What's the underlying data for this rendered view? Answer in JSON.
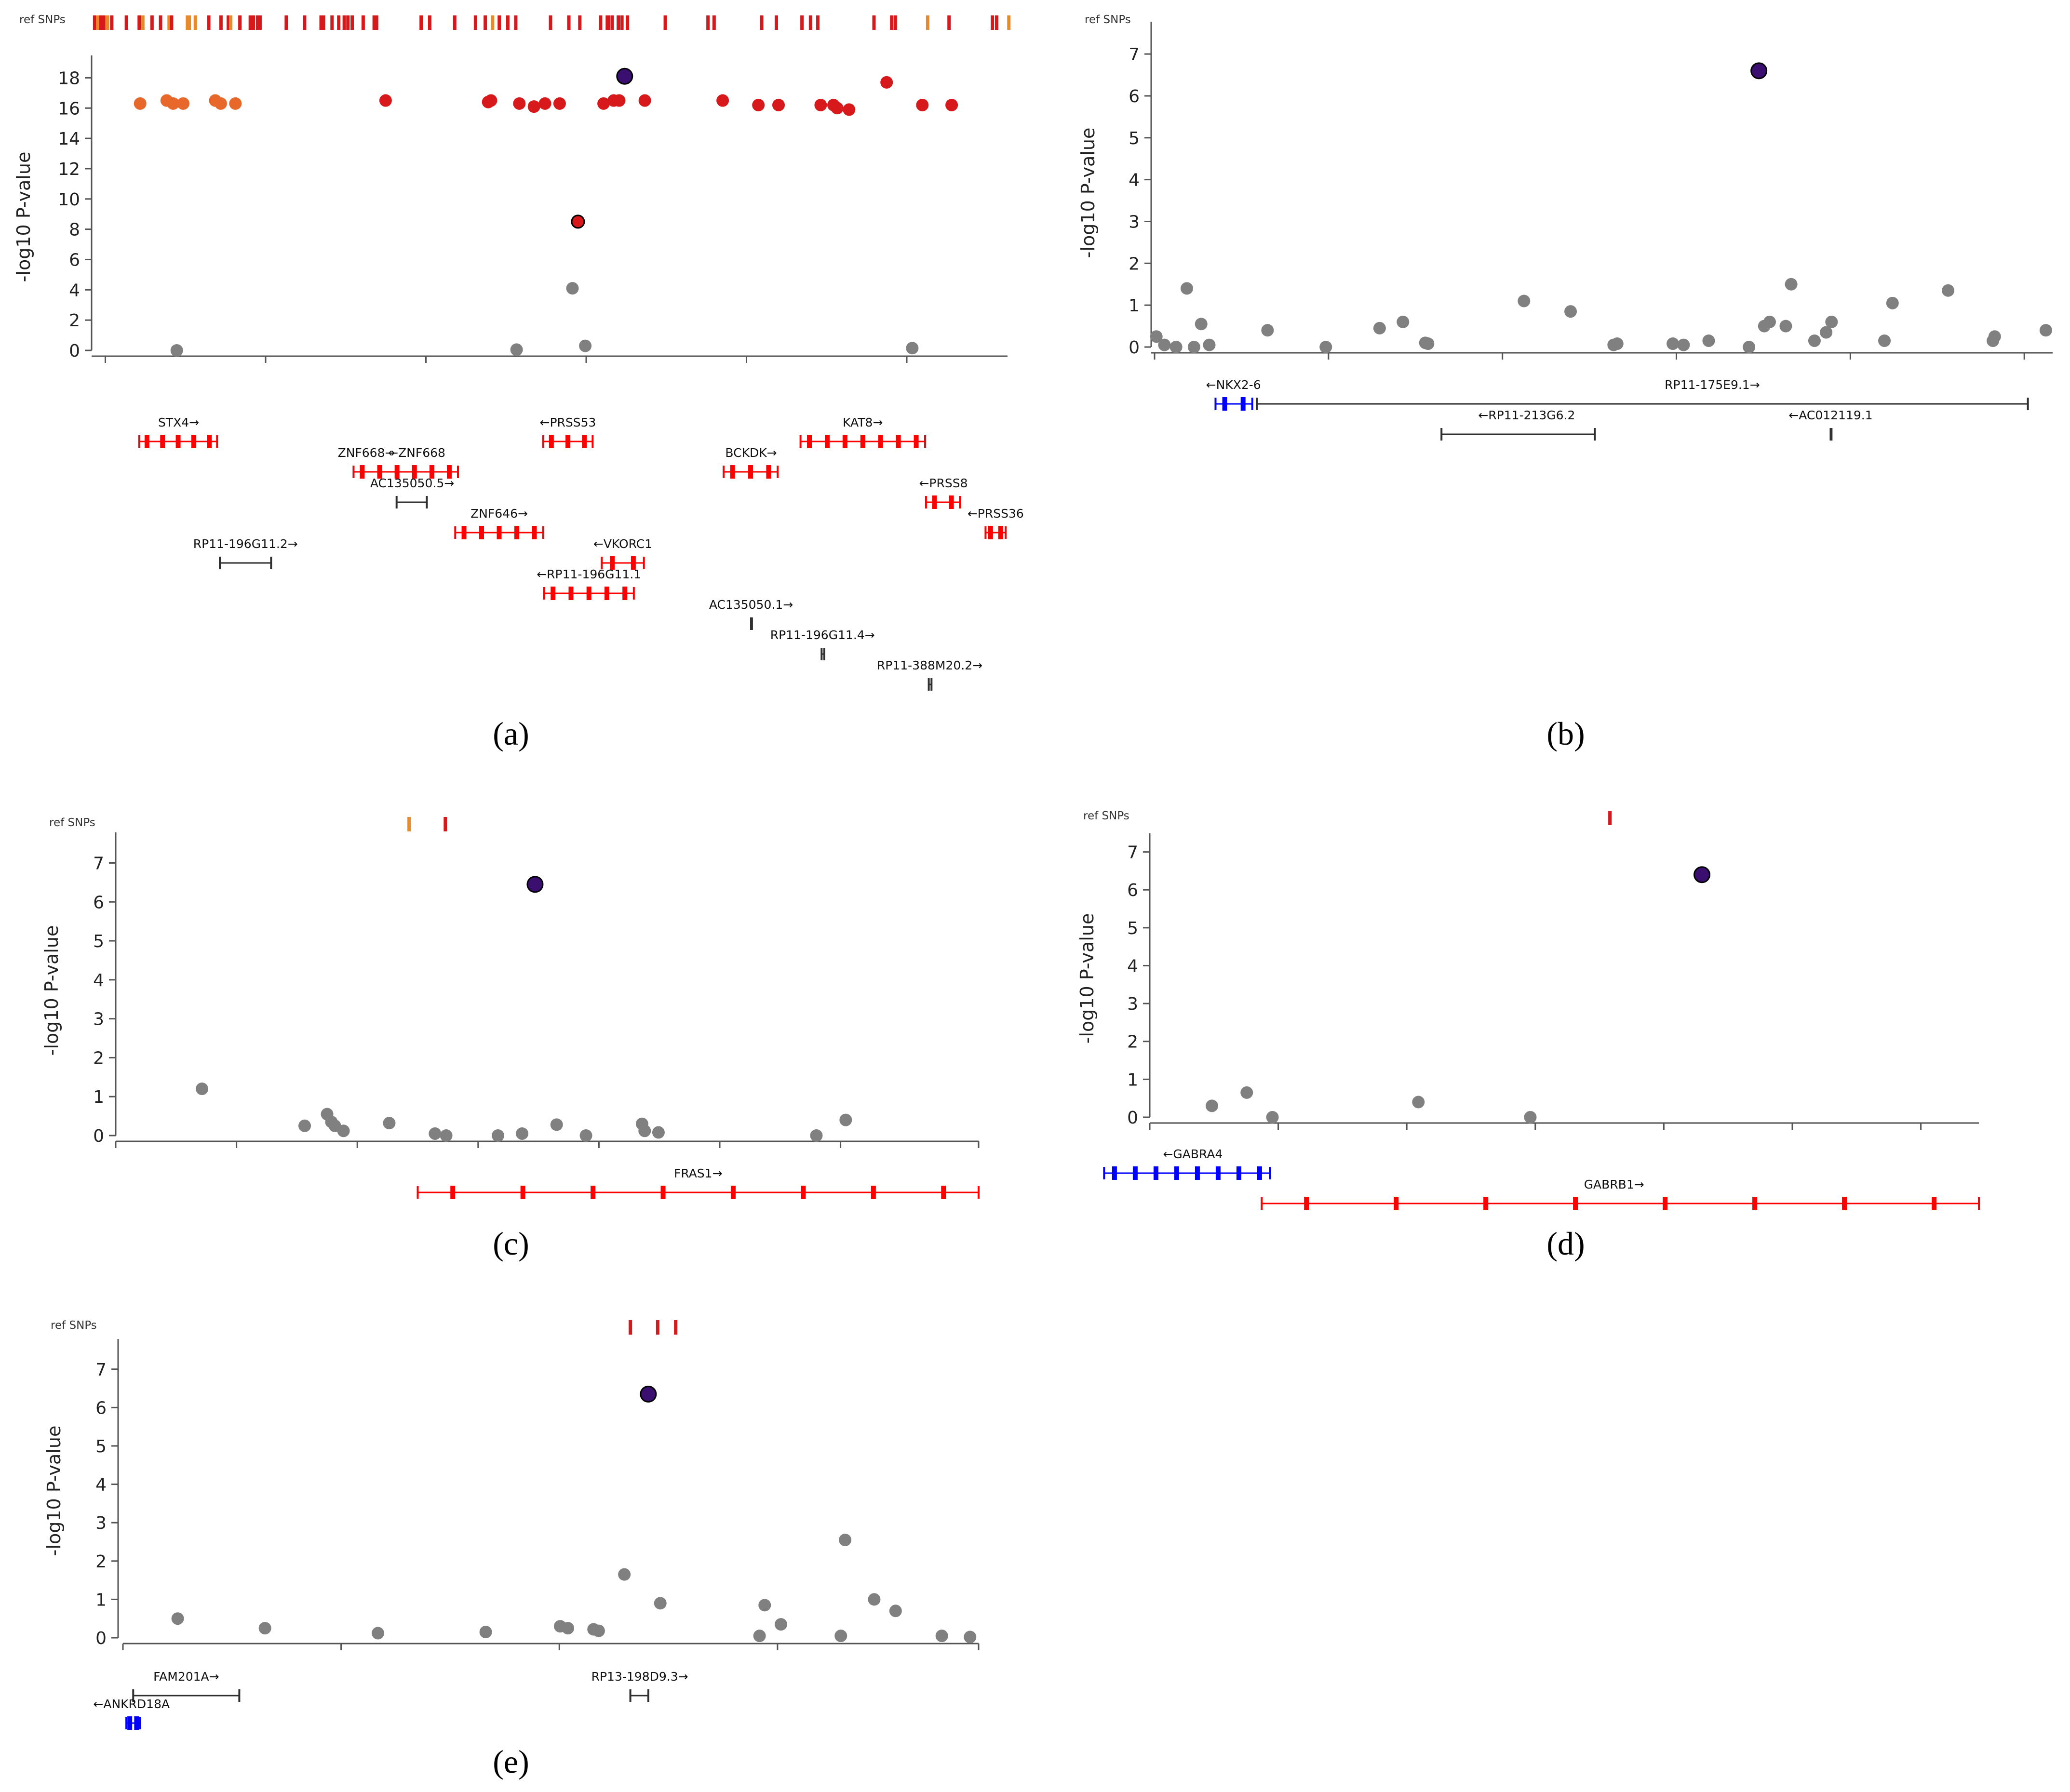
{
  "colors": {
    "axis": "#555555",
    "point_grey": "#808080",
    "lead": "#3b0f70",
    "snp_red": "#d7191c",
    "snp_orange": "#e8672a",
    "snp_amber": "#e88a2a",
    "gene_red": "#ff0000",
    "gene_blue": "#0000ff",
    "gene_black": "#303030"
  },
  "chart_data": [
    {
      "id": "a",
      "type": "scatter",
      "panel_label": "(a)",
      "snp_track_label": "ref SNPs",
      "ylabel": "-log10 P-value",
      "ylim": [
        0,
        19
      ],
      "yticks": [
        0,
        2,
        4,
        6,
        8,
        10,
        12,
        14,
        16,
        18
      ],
      "xlim": [
        0,
        1000
      ],
      "xticks": [
        15,
        190,
        365,
        540,
        715,
        890
      ],
      "snp_ticks": [
        {
          "x": 5,
          "c": "r"
        },
        {
          "x": 10,
          "c": "o"
        },
        {
          "x": 15,
          "c": "r"
        },
        {
          "x": 20,
          "c": "r"
        },
        {
          "x": 26,
          "c": "o"
        },
        {
          "x": 33,
          "c": "r"
        },
        {
          "x": 57,
          "c": "r"
        },
        {
          "x": 78,
          "c": "r"
        },
        {
          "x": 84,
          "c": "o"
        },
        {
          "x": 99,
          "c": "r"
        },
        {
          "x": 113,
          "c": "r"
        },
        {
          "x": 127,
          "c": "o"
        },
        {
          "x": 131,
          "c": "r"
        },
        {
          "x": 157,
          "c": "o"
        },
        {
          "x": 160,
          "c": "o"
        },
        {
          "x": 170,
          "c": "o"
        },
        {
          "x": 192,
          "c": "r"
        },
        {
          "x": 212,
          "c": "r"
        },
        {
          "x": 224,
          "c": "r"
        },
        {
          "x": 228,
          "c": "o"
        },
        {
          "x": 243,
          "c": "r"
        },
        {
          "x": 260,
          "c": "r"
        },
        {
          "x": 265,
          "c": "r"
        },
        {
          "x": 272,
          "c": "r"
        },
        {
          "x": 276,
          "c": "r"
        },
        {
          "x": 319,
          "c": "r"
        },
        {
          "x": 349,
          "c": "r"
        },
        {
          "x": 376,
          "c": "r"
        },
        {
          "x": 380,
          "c": "r"
        },
        {
          "x": 394,
          "c": "r"
        },
        {
          "x": 405,
          "c": "r"
        },
        {
          "x": 414,
          "c": "r"
        },
        {
          "x": 420,
          "c": "r"
        },
        {
          "x": 427,
          "c": "r"
        },
        {
          "x": 445,
          "c": "r"
        },
        {
          "x": 463,
          "c": "r"
        },
        {
          "x": 467,
          "c": "r"
        },
        {
          "x": 540,
          "c": "r"
        },
        {
          "x": 554,
          "c": "r"
        },
        {
          "x": 595,
          "c": "r"
        },
        {
          "x": 629,
          "c": "r"
        },
        {
          "x": 645,
          "c": "r"
        },
        {
          "x": 657,
          "c": "o"
        },
        {
          "x": 668,
          "c": "r"
        },
        {
          "x": 682,
          "c": "r"
        },
        {
          "x": 695,
          "c": "r"
        },
        {
          "x": 752,
          "c": "r"
        },
        {
          "x": 782,
          "c": "r"
        },
        {
          "x": 800,
          "c": "r"
        },
        {
          "x": 834,
          "c": "r"
        },
        {
          "x": 845,
          "c": "r"
        },
        {
          "x": 847,
          "c": "r"
        },
        {
          "x": 853,
          "c": "r"
        },
        {
          "x": 863,
          "c": "r"
        },
        {
          "x": 869,
          "c": "r"
        },
        {
          "x": 878,
          "c": "r"
        },
        {
          "x": 940,
          "c": "r"
        },
        {
          "x": 1010,
          "c": "r"
        },
        {
          "x": 1020,
          "c": "r"
        },
        {
          "x": 1098,
          "c": "r"
        },
        {
          "x": 1122,
          "c": "r"
        },
        {
          "x": 1164,
          "c": "r"
        },
        {
          "x": 1178,
          "c": "r"
        },
        {
          "x": 1190,
          "c": "r"
        },
        {
          "x": 1282,
          "c": "r"
        },
        {
          "x": 1311,
          "c": "r"
        },
        {
          "x": 1317,
          "c": "r"
        },
        {
          "x": 1370,
          "c": "o"
        },
        {
          "x": 1405,
          "c": "r"
        },
        {
          "x": 1476,
          "c": "r"
        },
        {
          "x": 1483,
          "c": "r"
        },
        {
          "x": 1503,
          "c": "o"
        }
      ],
      "lead": {
        "x": 582,
        "y": 18.1
      },
      "points": [
        {
          "x": 53,
          "y": 16.3,
          "c": "o"
        },
        {
          "x": 82,
          "y": 16.5,
          "c": "o"
        },
        {
          "x": 89,
          "y": 16.3,
          "c": "o"
        },
        {
          "x": 100,
          "y": 16.3,
          "c": "o"
        },
        {
          "x": 135,
          "y": 16.5,
          "c": "o"
        },
        {
          "x": 141,
          "y": 16.3,
          "c": "o"
        },
        {
          "x": 157,
          "y": 16.3,
          "c": "o"
        },
        {
          "x": 321,
          "y": 16.5,
          "c": "r"
        },
        {
          "x": 433,
          "y": 16.4,
          "c": "r"
        },
        {
          "x": 436,
          "y": 16.5,
          "c": "r"
        },
        {
          "x": 467,
          "y": 16.3,
          "c": "r"
        },
        {
          "x": 483,
          "y": 16.1,
          "c": "r"
        },
        {
          "x": 495,
          "y": 16.3,
          "c": "r"
        },
        {
          "x": 511,
          "y": 16.3,
          "c": "r"
        },
        {
          "x": 559,
          "y": 16.3,
          "c": "r"
        },
        {
          "x": 570,
          "y": 16.5,
          "c": "r"
        },
        {
          "x": 576,
          "y": 16.5,
          "c": "r"
        },
        {
          "x": 604,
          "y": 16.5,
          "c": "r"
        },
        {
          "x": 689,
          "y": 16.5,
          "c": "r"
        },
        {
          "x": 728,
          "y": 16.2,
          "c": "r"
        },
        {
          "x": 750,
          "y": 16.2,
          "c": "r"
        },
        {
          "x": 796,
          "y": 16.2,
          "c": "r"
        },
        {
          "x": 810,
          "y": 16.2,
          "c": "r"
        },
        {
          "x": 814,
          "y": 16.0,
          "c": "r"
        },
        {
          "x": 827,
          "y": 15.9,
          "c": "r"
        },
        {
          "x": 868,
          "y": 17.7,
          "c": "r"
        },
        {
          "x": 907,
          "y": 16.2,
          "c": "r"
        },
        {
          "x": 939,
          "y": 16.2,
          "c": "r"
        },
        {
          "x": 531,
          "y": 8.5,
          "c": "r"
        },
        {
          "x": 525,
          "y": 4.1,
          "c": "g"
        },
        {
          "x": 93,
          "y": 0.0,
          "c": "g"
        },
        {
          "x": 464,
          "y": 0.05,
          "c": "g"
        },
        {
          "x": 539,
          "y": 0.3,
          "c": "g"
        },
        {
          "x": 896,
          "y": 0.15,
          "c": "g"
        }
      ],
      "genes": [
        {
          "name": "STX4→",
          "x0": 52,
          "x1": 137,
          "row": 0,
          "color": "red",
          "lx": 95
        },
        {
          "name": "←PRSS53",
          "x0": 493,
          "x1": 547,
          "row": 0,
          "color": "red",
          "lx": 520
        },
        {
          "name": "KAT8→",
          "x0": 774,
          "x1": 910,
          "row": 0,
          "color": "red",
          "lx": 842
        },
        {
          "name": "ZNF668→",
          "x0": 286,
          "x1": 400,
          "row": 1,
          "color": "red",
          "lx": 300
        },
        {
          "name": "←ZNF668",
          "x0": 286,
          "x1": 400,
          "row": 1,
          "color": "red",
          "lx": 355
        },
        {
          "name": "BCKDK→",
          "x0": 690,
          "x1": 749,
          "row": 1,
          "color": "red",
          "lx": 720
        },
        {
          "name": "AC135050.5→",
          "x0": 333,
          "x1": 366,
          "row": 2,
          "color": "black",
          "lx": 350
        },
        {
          "name": "←PRSS8",
          "x0": 911,
          "x1": 948,
          "row": 2,
          "color": "red",
          "lx": 930
        },
        {
          "name": "ZNF646→",
          "x0": 397,
          "x1": 493,
          "row": 3,
          "color": "red",
          "lx": 445
        },
        {
          "name": "←PRSS36",
          "x0": 976,
          "x1": 998,
          "row": 3,
          "color": "red",
          "lx": 987
        },
        {
          "name": "RP11-196G11.2→",
          "x0": 140,
          "x1": 196,
          "row": 4,
          "color": "black",
          "lx": 168
        },
        {
          "name": "←VKORC1",
          "x0": 557,
          "x1": 603,
          "row": 4,
          "color": "red",
          "lx": 580
        },
        {
          "name": "←RP11-196G11.1",
          "x0": 494,
          "x1": 592,
          "row": 5,
          "color": "red",
          "lx": 543
        },
        {
          "name": "AC135050.1→",
          "x0": 720,
          "x1": 721,
          "row": 6,
          "color": "black",
          "lx": 720
        },
        {
          "name": "RP11-196G11.4→",
          "x0": 797,
          "x1": 800,
          "row": 7,
          "color": "black",
          "lx": 798
        },
        {
          "name": "RP11-388M20.2→",
          "x0": 914,
          "x1": 917,
          "row": 8,
          "color": "black",
          "lx": 915
        }
      ]
    },
    {
      "id": "b",
      "type": "scatter",
      "panel_label": "(b)",
      "snp_track_label": "ref SNPs",
      "ylabel": "-log10 P-value",
      "ylim": [
        0,
        7.6
      ],
      "yticks": [
        0,
        1,
        2,
        3,
        4,
        5,
        6,
        7
      ],
      "xlim": [
        0,
        1000
      ],
      "xticks": [
        0,
        194,
        388,
        582,
        776,
        970
      ],
      "snp_ticks": [],
      "lead": {
        "x": 674,
        "y": 6.6
      },
      "points": [
        {
          "x": 2,
          "y": 0.25
        },
        {
          "x": 11,
          "y": 0.05
        },
        {
          "x": 24,
          "y": 0.0
        },
        {
          "x": 36,
          "y": 1.4
        },
        {
          "x": 44,
          "y": 0.0
        },
        {
          "x": 52,
          "y": 0.55
        },
        {
          "x": 61,
          "y": 0.05
        },
        {
          "x": 126,
          "y": 0.4
        },
        {
          "x": 191,
          "y": 0.0
        },
        {
          "x": 251,
          "y": 0.45
        },
        {
          "x": 277,
          "y": 0.6
        },
        {
          "x": 302,
          "y": 0.1
        },
        {
          "x": 305,
          "y": 0.08
        },
        {
          "x": 412,
          "y": 1.1
        },
        {
          "x": 464,
          "y": 0.85
        },
        {
          "x": 512,
          "y": 0.05
        },
        {
          "x": 516,
          "y": 0.08
        },
        {
          "x": 578,
          "y": 0.08
        },
        {
          "x": 590,
          "y": 0.05
        },
        {
          "x": 618,
          "y": 0.15
        },
        {
          "x": 663,
          "y": 0.0
        },
        {
          "x": 680,
          "y": 0.5
        },
        {
          "x": 686,
          "y": 0.6
        },
        {
          "x": 704,
          "y": 0.5
        },
        {
          "x": 710,
          "y": 1.5
        },
        {
          "x": 736,
          "y": 0.15
        },
        {
          "x": 749,
          "y": 0.35
        },
        {
          "x": 755,
          "y": 0.6
        },
        {
          "x": 814,
          "y": 0.15
        },
        {
          "x": 823,
          "y": 1.05
        },
        {
          "x": 885,
          "y": 1.35
        },
        {
          "x": 935,
          "y": 0.15
        },
        {
          "x": 937,
          "y": 0.25
        },
        {
          "x": 994,
          "y": 0.4
        }
      ],
      "genes": [
        {
          "name": "←NKX2-6",
          "x0": 68,
          "x1": 109,
          "row": 0,
          "color": "blue",
          "lx": 88
        },
        {
          "name": "RP11-175E9.1→",
          "x0": 114,
          "x1": 974,
          "row": 0,
          "color": "black",
          "lx": 622
        },
        {
          "name": "←RP11-213G6.2",
          "x0": 320,
          "x1": 491,
          "row": 1,
          "color": "black",
          "lx": 415
        },
        {
          "name": "←AC012119.1",
          "x0": 754,
          "x1": 755,
          "row": 1,
          "color": "black",
          "lx": 754
        }
      ]
    },
    {
      "id": "c",
      "type": "scatter",
      "panel_label": "(c)",
      "snp_track_label": "ref SNPs",
      "ylabel": "-log10 P-value",
      "ylim": [
        0,
        7.6
      ],
      "yticks": [
        0,
        1,
        2,
        3,
        4,
        5,
        6,
        7
      ],
      "xlim": [
        0,
        1000
      ],
      "xticks": [
        0,
        140,
        280,
        420,
        560,
        700,
        840,
        1000
      ],
      "snp_ticks": [
        {
          "x": 340,
          "c": "o"
        },
        {
          "x": 382,
          "c": "r"
        }
      ],
      "lead": {
        "x": 486,
        "y": 6.45
      },
      "points": [
        {
          "x": 100,
          "y": 1.2
        },
        {
          "x": 219,
          "y": 0.25
        },
        {
          "x": 245,
          "y": 0.55
        },
        {
          "x": 250,
          "y": 0.35
        },
        {
          "x": 254,
          "y": 0.25
        },
        {
          "x": 264,
          "y": 0.12
        },
        {
          "x": 317,
          "y": 0.32
        },
        {
          "x": 370,
          "y": 0.05
        },
        {
          "x": 383,
          "y": 0.0
        },
        {
          "x": 443,
          "y": 0.0
        },
        {
          "x": 471,
          "y": 0.05
        },
        {
          "x": 511,
          "y": 0.28
        },
        {
          "x": 545,
          "y": 0.0
        },
        {
          "x": 610,
          "y": 0.3
        },
        {
          "x": 613,
          "y": 0.12
        },
        {
          "x": 629,
          "y": 0.08
        },
        {
          "x": 812,
          "y": 0.0
        },
        {
          "x": 846,
          "y": 0.4
        }
      ],
      "genes": [
        {
          "name": "FRAS1→",
          "x0": 350,
          "x1": 1000,
          "row": 0,
          "color": "red",
          "lx": 675
        }
      ]
    },
    {
      "id": "d",
      "type": "scatter",
      "panel_label": "(d)",
      "snp_track_label": "ref SNPs",
      "ylabel": "-log10 P-value",
      "ylim": [
        0,
        7.3
      ],
      "yticks": [
        0,
        1,
        2,
        3,
        4,
        5,
        6,
        7
      ],
      "xlim": [
        0,
        1000
      ],
      "xticks": [
        0,
        155,
        310,
        465,
        620,
        775,
        930
      ],
      "snp_ticks": [
        {
          "x": 555,
          "c": "r"
        }
      ],
      "lead": {
        "x": 666,
        "y": 6.4
      },
      "points": [
        {
          "x": 75,
          "y": 0.3
        },
        {
          "x": 117,
          "y": 0.65
        },
        {
          "x": 148,
          "y": 0.0
        },
        {
          "x": 324,
          "y": 0.4
        },
        {
          "x": 459,
          "y": 0.0
        }
      ],
      "genes": [
        {
          "name": "←GABRA4",
          "x0": -55,
          "x1": 145,
          "row": 0,
          "color": "blue",
          "lx": 52
        },
        {
          "name": "GABRB1→",
          "x0": 135,
          "x1": 1000,
          "row": 1,
          "color": "red",
          "lx": 560
        }
      ]
    },
    {
      "id": "e",
      "type": "scatter",
      "panel_label": "(e)",
      "snp_track_label": "ref SNPs",
      "ylabel": "-log10 P-value",
      "ylim": [
        0,
        7.6
      ],
      "yticks": [
        0,
        1,
        2,
        3,
        4,
        5,
        6,
        7
      ],
      "xlim": [
        0,
        1000
      ],
      "xticks": [
        0,
        255,
        510,
        765,
        1000
      ],
      "snp_ticks": [
        {
          "x": 593,
          "c": "r"
        },
        {
          "x": 625,
          "c": "r"
        },
        {
          "x": 646,
          "c": "r"
        }
      ],
      "lead": {
        "x": 614,
        "y": 6.35
      },
      "points": [
        {
          "x": 64,
          "y": 0.5
        },
        {
          "x": 166,
          "y": 0.25
        },
        {
          "x": 298,
          "y": 0.12
        },
        {
          "x": 424,
          "y": 0.15
        },
        {
          "x": 511,
          "y": 0.3
        },
        {
          "x": 520,
          "y": 0.25
        },
        {
          "x": 550,
          "y": 0.22
        },
        {
          "x": 556,
          "y": 0.18
        },
        {
          "x": 586,
          "y": 1.65
        },
        {
          "x": 628,
          "y": 0.9
        },
        {
          "x": 744,
          "y": 0.05
        },
        {
          "x": 750,
          "y": 0.85
        },
        {
          "x": 769,
          "y": 0.35
        },
        {
          "x": 839,
          "y": 0.05
        },
        {
          "x": 844,
          "y": 2.55
        },
        {
          "x": 878,
          "y": 1.0
        },
        {
          "x": 903,
          "y": 0.7
        },
        {
          "x": 957,
          "y": 0.05
        },
        {
          "x": 990,
          "y": 0.02
        }
      ],
      "genes": [
        {
          "name": "FAM201A→",
          "x0": 12,
          "x1": 136,
          "row": 0,
          "color": "black",
          "lx": 74
        },
        {
          "name": "RP13-198D9.3→",
          "x0": 593,
          "x1": 614,
          "row": 0,
          "color": "black",
          "lx": 604
        },
        {
          "name": "←ANKRD18A",
          "x0": 4,
          "x1": 20,
          "row": 1,
          "color": "blue",
          "lx": 10
        }
      ]
    }
  ]
}
